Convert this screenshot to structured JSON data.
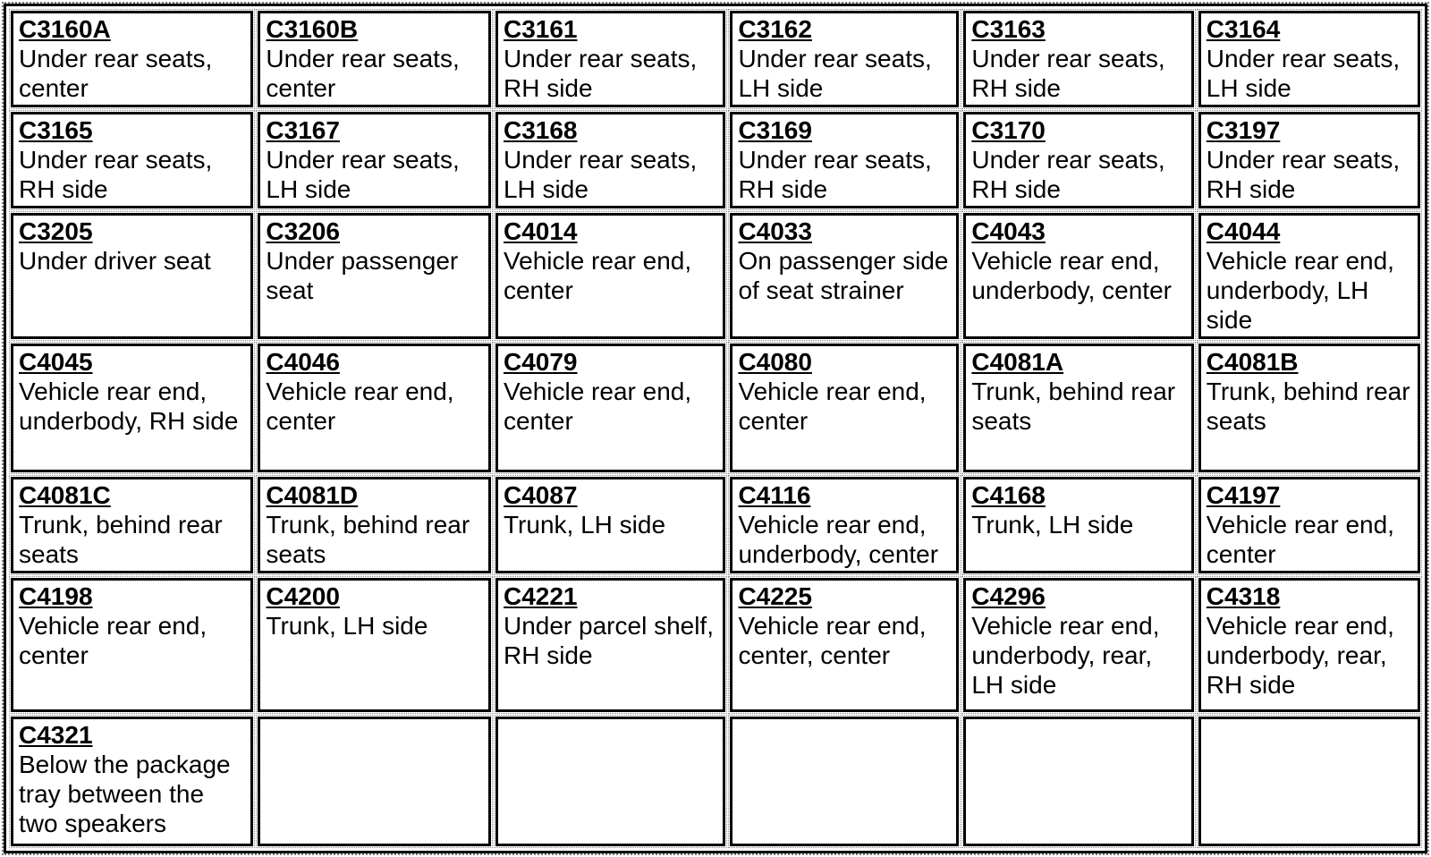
{
  "colors": {
    "border": "#000000",
    "background": "#ffffff",
    "text": "#000000",
    "gridline_dotted": "#8a8a8a"
  },
  "table": {
    "columns": 6,
    "rows": [
      [
        {
          "code": "C3160A",
          "location": "Under rear seats, center"
        },
        {
          "code": "C3160B",
          "location": "Under rear seats, center"
        },
        {
          "code": "C3161",
          "location": "Under rear seats, RH side"
        },
        {
          "code": "C3162",
          "location": "Under rear seats, LH side"
        },
        {
          "code": "C3163",
          "location": "Under rear seats, RH side"
        },
        {
          "code": "C3164",
          "location": "Under rear seats, LH side"
        }
      ],
      [
        {
          "code": "C3165",
          "location": "Under rear seats, RH side"
        },
        {
          "code": "C3167",
          "location": "Under rear seats, LH side"
        },
        {
          "code": "C3168",
          "location": "Under rear seats, LH side"
        },
        {
          "code": "C3169",
          "location": "Under rear seats, RH side"
        },
        {
          "code": "C3170",
          "location": "Under rear seats, RH side"
        },
        {
          "code": "C3197",
          "location": "Under rear seats, RH side"
        }
      ],
      [
        {
          "code": "C3205",
          "location": "Under driver seat"
        },
        {
          "code": "C3206",
          "location": "Under passenger seat"
        },
        {
          "code": "C4014",
          "location": "Vehicle rear end, center"
        },
        {
          "code": "C4033",
          "location": "On passenger side of seat strainer"
        },
        {
          "code": "C4043",
          "location": "Vehicle rear end, underbody, center"
        },
        {
          "code": "C4044",
          "location": "Vehicle rear end, underbody, LH side"
        }
      ],
      [
        {
          "code": "C4045",
          "location": "Vehicle rear end, underbody, RH side"
        },
        {
          "code": "C4046",
          "location": "Vehicle rear end, center"
        },
        {
          "code": "C4079",
          "location": "Vehicle rear end, center"
        },
        {
          "code": "C4080",
          "location": "Vehicle rear end, center"
        },
        {
          "code": "C4081A",
          "location": "Trunk, behind rear seats"
        },
        {
          "code": "C4081B",
          "location": "Trunk, behind rear seats"
        }
      ],
      [
        {
          "code": "C4081C",
          "location": "Trunk, behind rear seats"
        },
        {
          "code": "C4081D",
          "location": "Trunk, behind rear seats"
        },
        {
          "code": "C4087",
          "location": "Trunk, LH side"
        },
        {
          "code": "C4116",
          "location": "Vehicle rear end, underbody, center"
        },
        {
          "code": "C4168",
          "location": "Trunk, LH side"
        },
        {
          "code": "C4197",
          "location": "Vehicle rear end, center"
        }
      ],
      [
        {
          "code": "C4198",
          "location": "Vehicle rear end, center"
        },
        {
          "code": "C4200",
          "location": "Trunk, LH side"
        },
        {
          "code": "C4221",
          "location": "Under parcel shelf, RH side"
        },
        {
          "code": "C4225",
          "location": "Vehicle rear end, center, center"
        },
        {
          "code": "C4296",
          "location": "Vehicle rear end, underbody, rear, LH side"
        },
        {
          "code": "C4318",
          "location": "Vehicle rear end, underbody, rear, RH side"
        }
      ],
      [
        {
          "code": "C4321",
          "location": "Below the package tray between the two speakers"
        },
        null,
        null,
        null,
        null,
        null
      ]
    ]
  }
}
